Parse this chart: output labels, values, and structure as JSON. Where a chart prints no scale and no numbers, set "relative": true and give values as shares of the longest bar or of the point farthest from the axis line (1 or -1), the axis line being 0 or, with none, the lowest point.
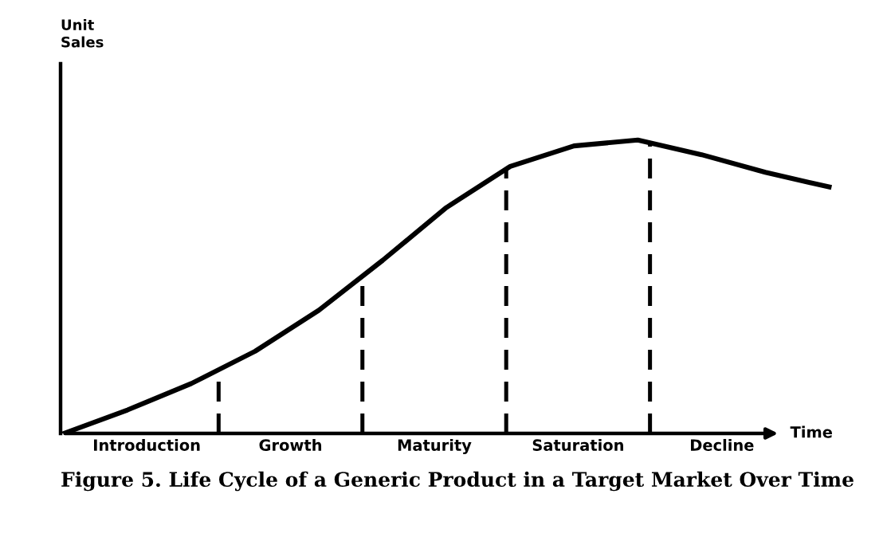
{
  "chart_data": {
    "type": "line",
    "relative": true,
    "title": "Figure 5. Life Cycle of a Generic Product in a Target Market Over Time",
    "xlabel": "Time",
    "annotations": [
      "Unit\nSales",
      "Introduction",
      "Growth",
      "Maturity",
      "Saturation",
      "Decline"
    ],
    "categories": [
      null,
      null,
      null,
      null,
      null,
      null,
      null,
      null,
      null,
      null,
      null,
      null,
      null
    ],
    "series": [
      {
        "color": "#000000",
        "values": [
          0,
          0.08,
          0.17,
          0.28,
          0.42,
          0.59,
          0.77,
          0.91,
          0.98,
          1.0,
          0.95,
          0.89,
          0.84
        ]
      }
    ],
    "marker": "none",
    "line_style": "solid"
  }
}
